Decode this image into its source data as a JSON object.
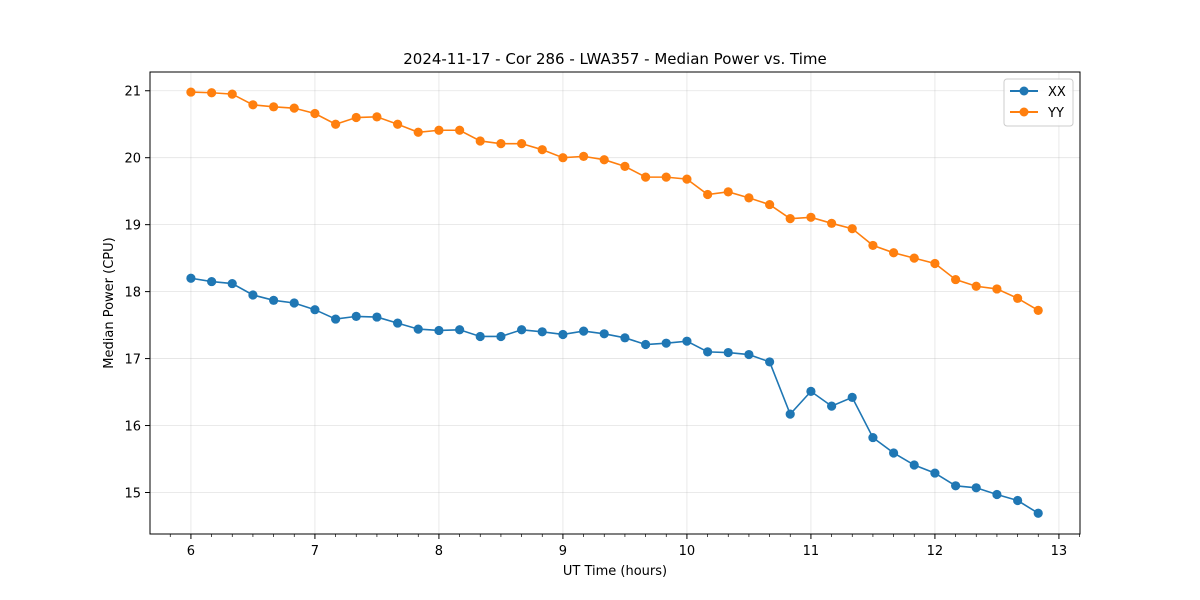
{
  "chart_data": {
    "type": "line",
    "title": "2024-11-17 - Cor 286 - LWA357 - Median Power vs. Time",
    "xlabel": "UT Time (hours)",
    "ylabel": "Median Power (CPU)",
    "xlim": [
      5.67,
      13.17
    ],
    "ylim": [
      14.38,
      21.28
    ],
    "xticks": [
      6,
      7,
      8,
      9,
      10,
      11,
      12,
      13
    ],
    "yticks": [
      15,
      16,
      17,
      18,
      19,
      20,
      21
    ],
    "grid": true,
    "legend_position": "top-right",
    "x": [
      6.0,
      6.167,
      6.333,
      6.5,
      6.667,
      6.833,
      7.0,
      7.167,
      7.333,
      7.5,
      7.667,
      7.833,
      8.0,
      8.167,
      8.333,
      8.5,
      8.667,
      8.833,
      9.0,
      9.167,
      9.333,
      9.5,
      9.667,
      9.833,
      10.0,
      10.167,
      10.333,
      10.5,
      10.667,
      10.833,
      11.0,
      11.167,
      11.333,
      11.5,
      11.667,
      11.833,
      12.0,
      12.167,
      12.333,
      12.5,
      12.667,
      12.833
    ],
    "series": [
      {
        "name": "XX",
        "color": "#1f77b4",
        "values": [
          18.2,
          18.15,
          18.12,
          17.95,
          17.87,
          17.83,
          17.73,
          17.59,
          17.63,
          17.62,
          17.53,
          17.44,
          17.42,
          17.43,
          17.33,
          17.33,
          17.43,
          17.4,
          17.36,
          17.41,
          17.37,
          17.31,
          17.21,
          17.23,
          17.26,
          17.1,
          17.09,
          17.06,
          16.95,
          16.17,
          16.51,
          16.29,
          16.42,
          15.82,
          15.59,
          15.41,
          15.29,
          15.1,
          15.07,
          14.97,
          14.88,
          14.69
        ]
      },
      {
        "name": "YY",
        "color": "#ff7f0e",
        "values": [
          20.98,
          20.97,
          20.95,
          20.79,
          20.76,
          20.74,
          20.66,
          20.5,
          20.6,
          20.61,
          20.5,
          20.38,
          20.41,
          20.41,
          20.25,
          20.21,
          20.21,
          20.12,
          20.0,
          20.02,
          19.97,
          19.87,
          19.71,
          19.71,
          19.68,
          19.45,
          19.49,
          19.4,
          19.3,
          19.09,
          19.11,
          19.02,
          18.94,
          18.69,
          18.58,
          18.5,
          18.42,
          18.18,
          18.08,
          18.04,
          17.9,
          17.72
        ]
      }
    ]
  }
}
